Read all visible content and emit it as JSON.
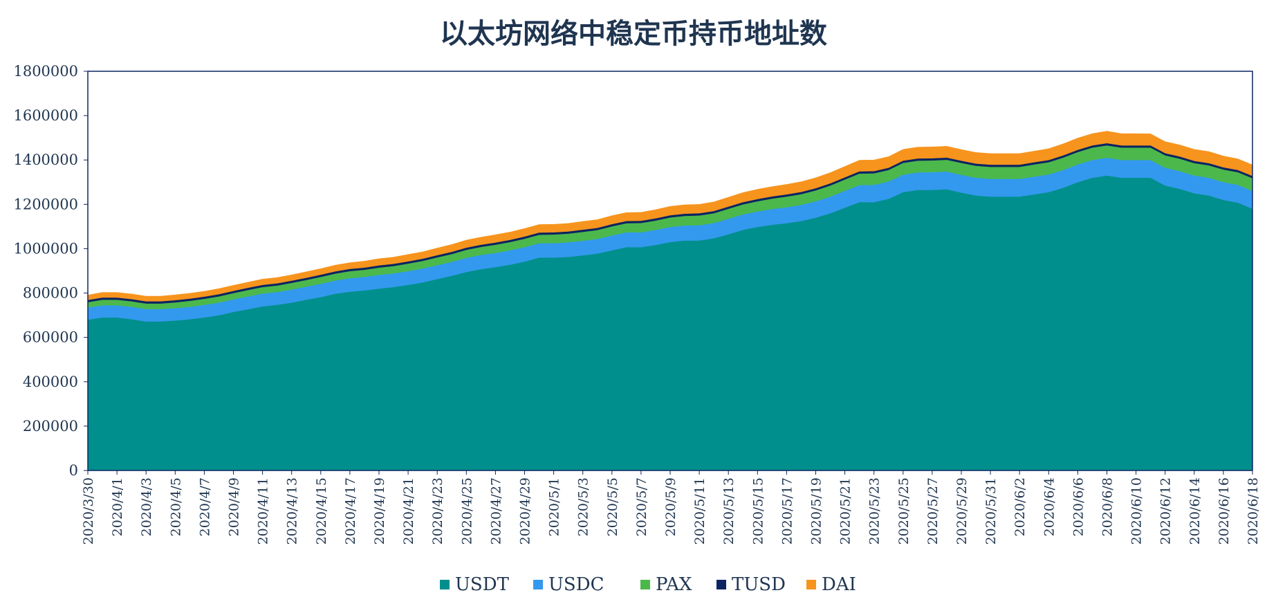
{
  "chart_data": {
    "type": "area",
    "stacked": true,
    "title": "以太坊网络中稳定币持币地址数",
    "xlabel": "",
    "ylabel": "",
    "ylim": [
      0,
      1800000
    ],
    "yticks": [
      0,
      200000,
      400000,
      600000,
      800000,
      1000000,
      1200000,
      1400000,
      1600000,
      1800000
    ],
    "grid": false,
    "legend_position": "bottom",
    "categories": [
      "2020/3/30",
      "2020/3/31",
      "2020/4/1",
      "2020/4/2",
      "2020/4/3",
      "2020/4/4",
      "2020/4/5",
      "2020/4/6",
      "2020/4/7",
      "2020/4/8",
      "2020/4/9",
      "2020/4/10",
      "2020/4/11",
      "2020/4/12",
      "2020/4/13",
      "2020/4/14",
      "2020/4/15",
      "2020/4/16",
      "2020/4/17",
      "2020/4/18",
      "2020/4/19",
      "2020/4/20",
      "2020/4/21",
      "2020/4/22",
      "2020/4/23",
      "2020/4/24",
      "2020/4/25",
      "2020/4/26",
      "2020/4/27",
      "2020/4/28",
      "2020/4/29",
      "2020/4/30",
      "2020/5/1",
      "2020/5/2",
      "2020/5/3",
      "2020/5/4",
      "2020/5/5",
      "2020/5/6",
      "2020/5/7",
      "2020/5/8",
      "2020/5/9",
      "2020/5/10",
      "2020/5/11",
      "2020/5/12",
      "2020/5/13",
      "2020/5/14",
      "2020/5/15",
      "2020/5/16",
      "2020/5/17",
      "2020/5/18",
      "2020/5/19",
      "2020/5/20",
      "2020/5/21",
      "2020/5/22",
      "2020/5/23",
      "2020/5/24",
      "2020/5/25",
      "2020/5/26",
      "2020/5/27",
      "2020/5/28",
      "2020/5/29",
      "2020/5/30",
      "2020/5/31",
      "2020/6/1",
      "2020/6/2",
      "2020/6/3",
      "2020/6/4",
      "2020/6/5",
      "2020/6/6",
      "2020/6/7",
      "2020/6/8",
      "2020/6/9",
      "2020/6/10",
      "2020/6/11",
      "2020/6/12",
      "2020/6/13",
      "2020/6/14",
      "2020/6/15",
      "2020/6/16",
      "2020/6/17",
      "2020/6/18"
    ],
    "tick_labels": [
      "2020/3/30",
      "2020/4/1",
      "2020/4/3",
      "2020/4/5",
      "2020/4/7",
      "2020/4/9",
      "2020/4/11",
      "2020/4/13",
      "2020/4/15",
      "2020/4/17",
      "2020/4/19",
      "2020/4/21",
      "2020/4/23",
      "2020/4/25",
      "2020/4/27",
      "2020/4/29",
      "2020/5/1",
      "2020/5/3",
      "2020/5/5",
      "2020/5/7",
      "2020/5/9",
      "2020/5/11",
      "2020/5/13",
      "2020/5/15",
      "2020/5/17",
      "2020/5/19",
      "2020/5/21",
      "2020/5/23",
      "2020/5/25",
      "2020/5/27",
      "2020/5/29",
      "2020/5/31",
      "2020/6/2",
      "2020/6/4",
      "2020/6/6",
      "2020/6/8",
      "2020/6/10",
      "2020/6/12",
      "2020/6/14",
      "2020/6/16",
      "2020/6/18"
    ],
    "series": [
      {
        "name": "USDT",
        "color": "#008f8c",
        "values": [
          680000,
          690000,
          690000,
          682000,
          672000,
          672000,
          676000,
          682000,
          690000,
          700000,
          715000,
          727000,
          740000,
          747000,
          757000,
          770000,
          782000,
          797000,
          806000,
          812000,
          820000,
          827000,
          837000,
          848000,
          863000,
          878000,
          895000,
          908000,
          917000,
          928000,
          942000,
          960000,
          960000,
          963000,
          970000,
          978000,
          993000,
          1007000,
          1007000,
          1017000,
          1030000,
          1037000,
          1037000,
          1047000,
          1065000,
          1085000,
          1098000,
          1108000,
          1115000,
          1125000,
          1140000,
          1160000,
          1185000,
          1210000,
          1210000,
          1225000,
          1255000,
          1265000,
          1265000,
          1268000,
          1253000,
          1240000,
          1235000,
          1235000,
          1235000,
          1245000,
          1255000,
          1275000,
          1300000,
          1320000,
          1330000,
          1320000,
          1320000,
          1320000,
          1285000,
          1270000,
          1250000,
          1240000,
          1220000,
          1208000,
          1180000
        ]
      },
      {
        "name": "USDC",
        "color": "#3399ee",
        "values": [
          55000,
          55000,
          55000,
          56000,
          56000,
          56000,
          56000,
          56000,
          57000,
          57000,
          57000,
          58000,
          58000,
          58000,
          59000,
          59000,
          60000,
          60000,
          61000,
          61000,
          62000,
          62000,
          62000,
          63000,
          63000,
          63000,
          64000,
          64000,
          64000,
          65000,
          65000,
          65000,
          65000,
          66000,
          66000,
          66000,
          67000,
          67000,
          67000,
          68000,
          68000,
          68000,
          69000,
          69000,
          70000,
          70000,
          70000,
          71000,
          72000,
          73000,
          74000,
          75000,
          76000,
          77000,
          78000,
          78000,
          79000,
          79000,
          80000,
          80000,
          80000,
          80000,
          80000,
          80000,
          80000,
          80000,
          80000,
          80000,
          80000,
          80000,
          80000,
          80000,
          80000,
          80000,
          80000,
          80000,
          80000,
          80000,
          80000,
          80000,
          80000
        ]
      },
      {
        "name": "PAX",
        "color": "#4cb84c",
        "values": [
          24000,
          25000,
          25000,
          25000,
          25000,
          25000,
          26000,
          27000,
          27000,
          28000,
          28000,
          29000,
          29000,
          29000,
          30000,
          30000,
          31000,
          31000,
          32000,
          32000,
          33000,
          33000,
          34000,
          34000,
          35000,
          35000,
          36000,
          36000,
          37000,
          37000,
          38000,
          38000,
          39000,
          39000,
          40000,
          40000,
          41000,
          41000,
          42000,
          42000,
          43000,
          43000,
          44000,
          44000,
          45000,
          45000,
          46000,
          47000,
          48000,
          48000,
          49000,
          50000,
          51000,
          52000,
          52000,
          52000,
          53000,
          53000,
          53000,
          53000,
          54000,
          54000,
          54000,
          54000,
          54000,
          55000,
          55000,
          56000,
          56000,
          56000,
          56000,
          56000,
          56000,
          56000,
          56000,
          56000,
          56000,
          56000,
          57000,
          57000,
          58000
        ]
      },
      {
        "name": "TUSD",
        "color": "#0c2461",
        "values": [
          10000,
          10000,
          10000,
          10000,
          10000,
          10000,
          10000,
          10000,
          10000,
          10000,
          10000,
          10000,
          10000,
          10000,
          10000,
          10000,
          10000,
          10000,
          10000,
          10000,
          10000,
          10000,
          10000,
          10000,
          10000,
          10000,
          10000,
          10000,
          10000,
          10000,
          10000,
          10000,
          10000,
          10000,
          10000,
          10000,
          10000,
          10000,
          10000,
          10000,
          10000,
          10000,
          10000,
          10000,
          10000,
          10000,
          10000,
          10000,
          10000,
          10000,
          10000,
          10000,
          10000,
          10000,
          10000,
          10000,
          10000,
          10000,
          10000,
          10000,
          10000,
          10000,
          10000,
          10000,
          10000,
          10000,
          10000,
          10000,
          10000,
          10000,
          10000,
          10000,
          10000,
          10000,
          10000,
          10000,
          10000,
          10000,
          10000,
          10000,
          10000
        ]
      },
      {
        "name": "DAI",
        "color": "#f7941d",
        "values": [
          22000,
          23000,
          23000,
          23000,
          23000,
          23000,
          24000,
          24000,
          24000,
          25000,
          25000,
          25000,
          26000,
          26000,
          26000,
          27000,
          27000,
          28000,
          28000,
          29000,
          30000,
          30000,
          31000,
          31000,
          32000,
          33000,
          34000,
          34000,
          35000,
          35000,
          36000,
          36000,
          36000,
          36000,
          37000,
          37000,
          38000,
          38000,
          38000,
          39000,
          40000,
          40000,
          40000,
          41000,
          42000,
          43000,
          44000,
          44000,
          45000,
          46000,
          47000,
          48000,
          49000,
          50000,
          50000,
          50000,
          51000,
          51000,
          51000,
          51000,
          50000,
          50000,
          50000,
          50000,
          50000,
          50000,
          51000,
          52000,
          53000,
          53000,
          54000,
          53000,
          53000,
          52000,
          52000,
          52000,
          52000,
          52000,
          51000,
          50000,
          50000
        ]
      }
    ]
  }
}
